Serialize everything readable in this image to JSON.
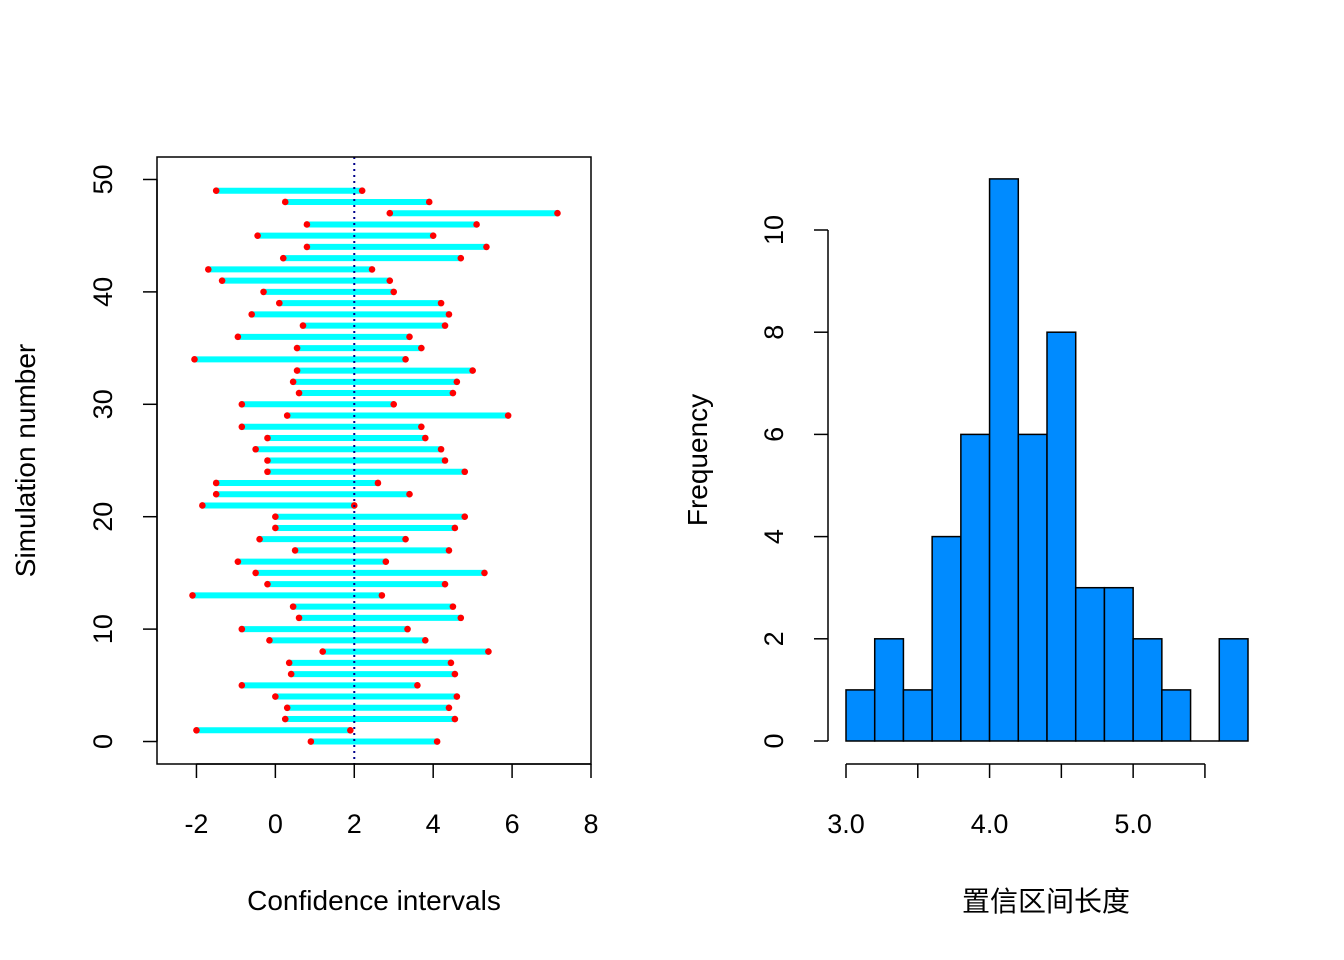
{
  "chart_data": [
    {
      "type": "interval",
      "xlabel": "Confidence intervals",
      "ylabel": "Simulation number",
      "xlim": [
        -3,
        8
      ],
      "ylim": [
        -2,
        52
      ],
      "xticks": [
        -2,
        0,
        2,
        4,
        6,
        8
      ],
      "yticks": [
        0,
        10,
        20,
        30,
        40,
        50
      ],
      "reference_line": {
        "x": 2,
        "color": "#00008b",
        "style": "dotted"
      },
      "colors": {
        "interval": "#00ffff",
        "endpoint": "#ff0000"
      },
      "intervals": [
        {
          "sim": 1,
          "lower": 0.9,
          "upper": 4.1
        },
        {
          "sim": 2,
          "lower": -2.0,
          "upper": 1.9
        },
        {
          "sim": 3,
          "lower": 0.25,
          "upper": 4.55
        },
        {
          "sim": 4,
          "lower": 0.3,
          "upper": 4.4
        },
        {
          "sim": 5,
          "lower": 0.0,
          "upper": 4.6
        },
        {
          "sim": 6,
          "lower": -0.85,
          "upper": 3.6
        },
        {
          "sim": 7,
          "lower": 0.4,
          "upper": 4.55
        },
        {
          "sim": 8,
          "lower": 0.35,
          "upper": 4.45
        },
        {
          "sim": 9,
          "lower": 1.2,
          "upper": 5.4
        },
        {
          "sim": 10,
          "lower": -0.15,
          "upper": 3.8
        },
        {
          "sim": 11,
          "lower": -0.85,
          "upper": 3.35
        },
        {
          "sim": 12,
          "lower": 0.6,
          "upper": 4.7
        },
        {
          "sim": 13,
          "lower": 0.45,
          "upper": 4.5
        },
        {
          "sim": 14,
          "lower": -2.1,
          "upper": 2.7
        },
        {
          "sim": 15,
          "lower": -0.2,
          "upper": 4.3
        },
        {
          "sim": 16,
          "lower": -0.5,
          "upper": 5.3
        },
        {
          "sim": 17,
          "lower": -0.95,
          "upper": 2.8
        },
        {
          "sim": 18,
          "lower": 0.5,
          "upper": 4.4
        },
        {
          "sim": 19,
          "lower": -0.4,
          "upper": 3.3
        },
        {
          "sim": 20,
          "lower": 0.0,
          "upper": 4.55
        },
        {
          "sim": 21,
          "lower": 0.0,
          "upper": 4.8
        },
        {
          "sim": 22,
          "lower": -1.85,
          "upper": 2.0
        },
        {
          "sim": 23,
          "lower": -1.5,
          "upper": 3.4
        },
        {
          "sim": 24,
          "lower": -1.5,
          "upper": 2.6
        },
        {
          "sim": 25,
          "lower": -0.2,
          "upper": 4.8
        },
        {
          "sim": 26,
          "lower": -0.2,
          "upper": 4.3
        },
        {
          "sim": 27,
          "lower": -0.5,
          "upper": 4.2
        },
        {
          "sim": 28,
          "lower": -0.2,
          "upper": 3.8
        },
        {
          "sim": 29,
          "lower": -0.85,
          "upper": 3.7
        },
        {
          "sim": 30,
          "lower": 0.3,
          "upper": 5.9
        },
        {
          "sim": 31,
          "lower": -0.85,
          "upper": 3.0
        },
        {
          "sim": 32,
          "lower": 0.6,
          "upper": 4.5
        },
        {
          "sim": 33,
          "lower": 0.45,
          "upper": 4.6
        },
        {
          "sim": 34,
          "lower": 0.55,
          "upper": 5.0
        },
        {
          "sim": 35,
          "lower": -2.05,
          "upper": 3.3
        },
        {
          "sim": 36,
          "lower": 0.55,
          "upper": 3.7
        },
        {
          "sim": 37,
          "lower": -0.95,
          "upper": 3.4
        },
        {
          "sim": 38,
          "lower": 0.7,
          "upper": 4.3
        },
        {
          "sim": 39,
          "lower": -0.6,
          "upper": 4.4
        },
        {
          "sim": 40,
          "lower": 0.1,
          "upper": 4.2
        },
        {
          "sim": 41,
          "lower": -0.3,
          "upper": 3.0
        },
        {
          "sim": 42,
          "lower": -1.35,
          "upper": 2.9
        },
        {
          "sim": 43,
          "lower": -1.7,
          "upper": 2.45
        },
        {
          "sim": 44,
          "lower": 0.2,
          "upper": 4.7
        },
        {
          "sim": 45,
          "lower": 0.8,
          "upper": 5.35
        },
        {
          "sim": 46,
          "lower": -0.45,
          "upper": 4.0
        },
        {
          "sim": 47,
          "lower": 0.8,
          "upper": 5.1
        },
        {
          "sim": 48,
          "lower": 2.9,
          "upper": 7.15
        },
        {
          "sim": 49,
          "lower": 0.25,
          "upper": 3.9
        },
        {
          "sim": 50,
          "lower": -1.5,
          "upper": 2.2
        }
      ]
    },
    {
      "type": "histogram",
      "xlabel": "置信区间长度",
      "ylabel": "Frequency",
      "xlim": [
        3.0,
        5.8
      ],
      "ylim": [
        0,
        11
      ],
      "xticks": [
        3.0,
        3.5,
        4.0,
        4.5,
        5.0,
        5.5
      ],
      "xtick_labels": [
        "3.0",
        "4.0",
        "5.0"
      ],
      "yticks": [
        0,
        2,
        4,
        6,
        8,
        10
      ],
      "bin_width": 0.2,
      "bar_color": "#008bff",
      "bins": [
        {
          "from": 3.0,
          "to": 3.2,
          "count": 1
        },
        {
          "from": 3.2,
          "to": 3.4,
          "count": 2
        },
        {
          "from": 3.4,
          "to": 3.6,
          "count": 1
        },
        {
          "from": 3.6,
          "to": 3.8,
          "count": 4
        },
        {
          "from": 3.8,
          "to": 4.0,
          "count": 6
        },
        {
          "from": 4.0,
          "to": 4.2,
          "count": 11
        },
        {
          "from": 4.2,
          "to": 4.4,
          "count": 6
        },
        {
          "from": 4.4,
          "to": 4.6,
          "count": 8
        },
        {
          "from": 4.6,
          "to": 4.8,
          "count": 3
        },
        {
          "from": 4.8,
          "to": 5.0,
          "count": 3
        },
        {
          "from": 5.0,
          "to": 5.2,
          "count": 2
        },
        {
          "from": 5.2,
          "to": 5.4,
          "count": 1
        },
        {
          "from": 5.4,
          "to": 5.6,
          "count": 0
        },
        {
          "from": 5.6,
          "to": 5.8,
          "count": 2
        }
      ]
    }
  ]
}
